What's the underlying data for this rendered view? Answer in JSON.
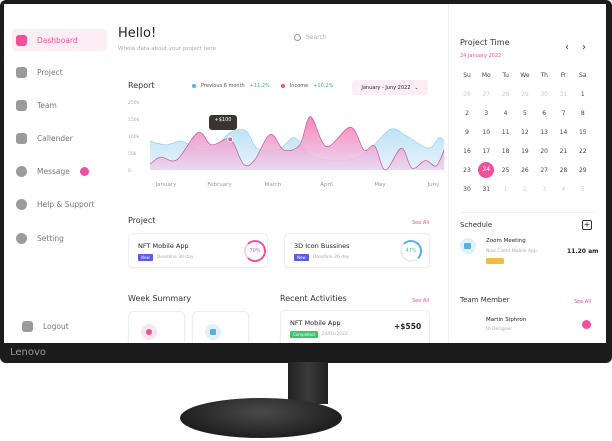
{
  "sidebar": {
    "items": [
      {
        "label": "Dashboard",
        "icon": "grid-icon",
        "active": true
      },
      {
        "label": "Project",
        "icon": "briefcase-icon"
      },
      {
        "label": "Team",
        "icon": "team-icon"
      },
      {
        "label": "Callender",
        "icon": "calendar-icon"
      },
      {
        "label": "Message",
        "icon": "message-icon"
      },
      {
        "label": "Help & Support",
        "icon": "help-icon"
      },
      {
        "label": "Setting",
        "icon": "gear-icon"
      }
    ],
    "logout": "Logout"
  },
  "header": {
    "title": "Hello!",
    "subtitle": "Whole data about your project here",
    "search_placeholder": "Search"
  },
  "report": {
    "title": "Report",
    "legend": [
      {
        "label": "Previous 6 month",
        "change": "+11.2%",
        "color": "#5aaee0"
      },
      {
        "label": "Income",
        "change": "+10.2%",
        "color": "#f0509c"
      }
    ],
    "range": "January - Juny 2022",
    "tooltip": "+$100"
  },
  "chart_data": {
    "type": "area",
    "categories": [
      "January",
      "February",
      "March",
      "April",
      "May",
      "Juny"
    ],
    "yticks": [
      "0",
      "50k",
      "100k",
      "150k",
      "250k"
    ],
    "series": [
      {
        "name": "Previous 6 month",
        "color": "#5aaee0",
        "x": [
          -0.3,
          0.0,
          0.3,
          0.6,
          0.9,
          1.2,
          1.5,
          1.7,
          2.1,
          2.4,
          2.7,
          3.1,
          3.5,
          3.8,
          4.2,
          4.5,
          4.9,
          5.1,
          5.2
        ],
        "values": [
          85,
          74,
          85,
          59,
          64,
          110,
          115,
          64,
          59,
          95,
          43,
          28,
          33,
          59,
          120,
          100,
          64,
          95,
          85
        ]
      },
      {
        "name": "Income",
        "color": "#f0509c",
        "x": [
          -0.3,
          -0.1,
          0.2,
          0.6,
          0.85,
          1.2,
          1.45,
          1.65,
          1.95,
          2.2,
          2.5,
          2.7,
          3.0,
          3.45,
          3.7,
          3.9,
          4.1,
          4.4,
          4.6,
          4.85,
          5.05,
          5.2
        ],
        "values": [
          17,
          38,
          30,
          110,
          74,
          90,
          17,
          28,
          105,
          59,
          74,
          157,
          69,
          126,
          59,
          71,
          0,
          64,
          5,
          28,
          12,
          59
        ]
      }
    ]
  },
  "projects": {
    "title": "Project",
    "see_all": "See All",
    "items": [
      {
        "name": "NFT Mobile App",
        "tag": "New",
        "deadline": "Deadline 30 day",
        "progress": "70%",
        "color": "#f0509c"
      },
      {
        "name": "3D Icon Bussines",
        "tag": "New",
        "deadline": "Deadline 26 day",
        "progress": "47%",
        "color": "#5aaee0"
      }
    ]
  },
  "week_summary": {
    "title": "Week Summary"
  },
  "recent": {
    "title": "Recent Activities",
    "see_all": "See All",
    "items": [
      {
        "name": "NFT Mobile App",
        "status": "Completed",
        "date": "24/01/2022",
        "amount": "+$550"
      }
    ]
  },
  "calendar": {
    "title": "Project Time",
    "date": "24 January 2022",
    "days": [
      "Su",
      "Mo",
      "Tu",
      "We",
      "Th",
      "Fr",
      "Sa"
    ],
    "weeks": [
      [
        "26",
        "27",
        "28",
        "29",
        "30",
        "31",
        "1"
      ],
      [
        "2",
        "3",
        "4",
        "5",
        "6",
        "7",
        "8"
      ],
      [
        "9",
        "10",
        "11",
        "12",
        "13",
        "14",
        "15"
      ],
      [
        "16",
        "17",
        "18",
        "19",
        "20",
        "21",
        "22"
      ],
      [
        "23",
        "24",
        "25",
        "26",
        "27",
        "28",
        "29"
      ],
      [
        "30",
        "31",
        "1",
        "2",
        "3",
        "4",
        "5"
      ]
    ],
    "selected": "24"
  },
  "schedule": {
    "title": "Schedule",
    "items": [
      {
        "name": "Zoom Meeting",
        "desc": "New Client Mobile App",
        "time": "11.20 am"
      }
    ]
  },
  "team": {
    "title": "Team Member",
    "see_all": "See All",
    "members": [
      {
        "name": "Martin Siphron",
        "role": "UI Designer"
      }
    ]
  },
  "monitor": {
    "brand": "Lenovo"
  }
}
